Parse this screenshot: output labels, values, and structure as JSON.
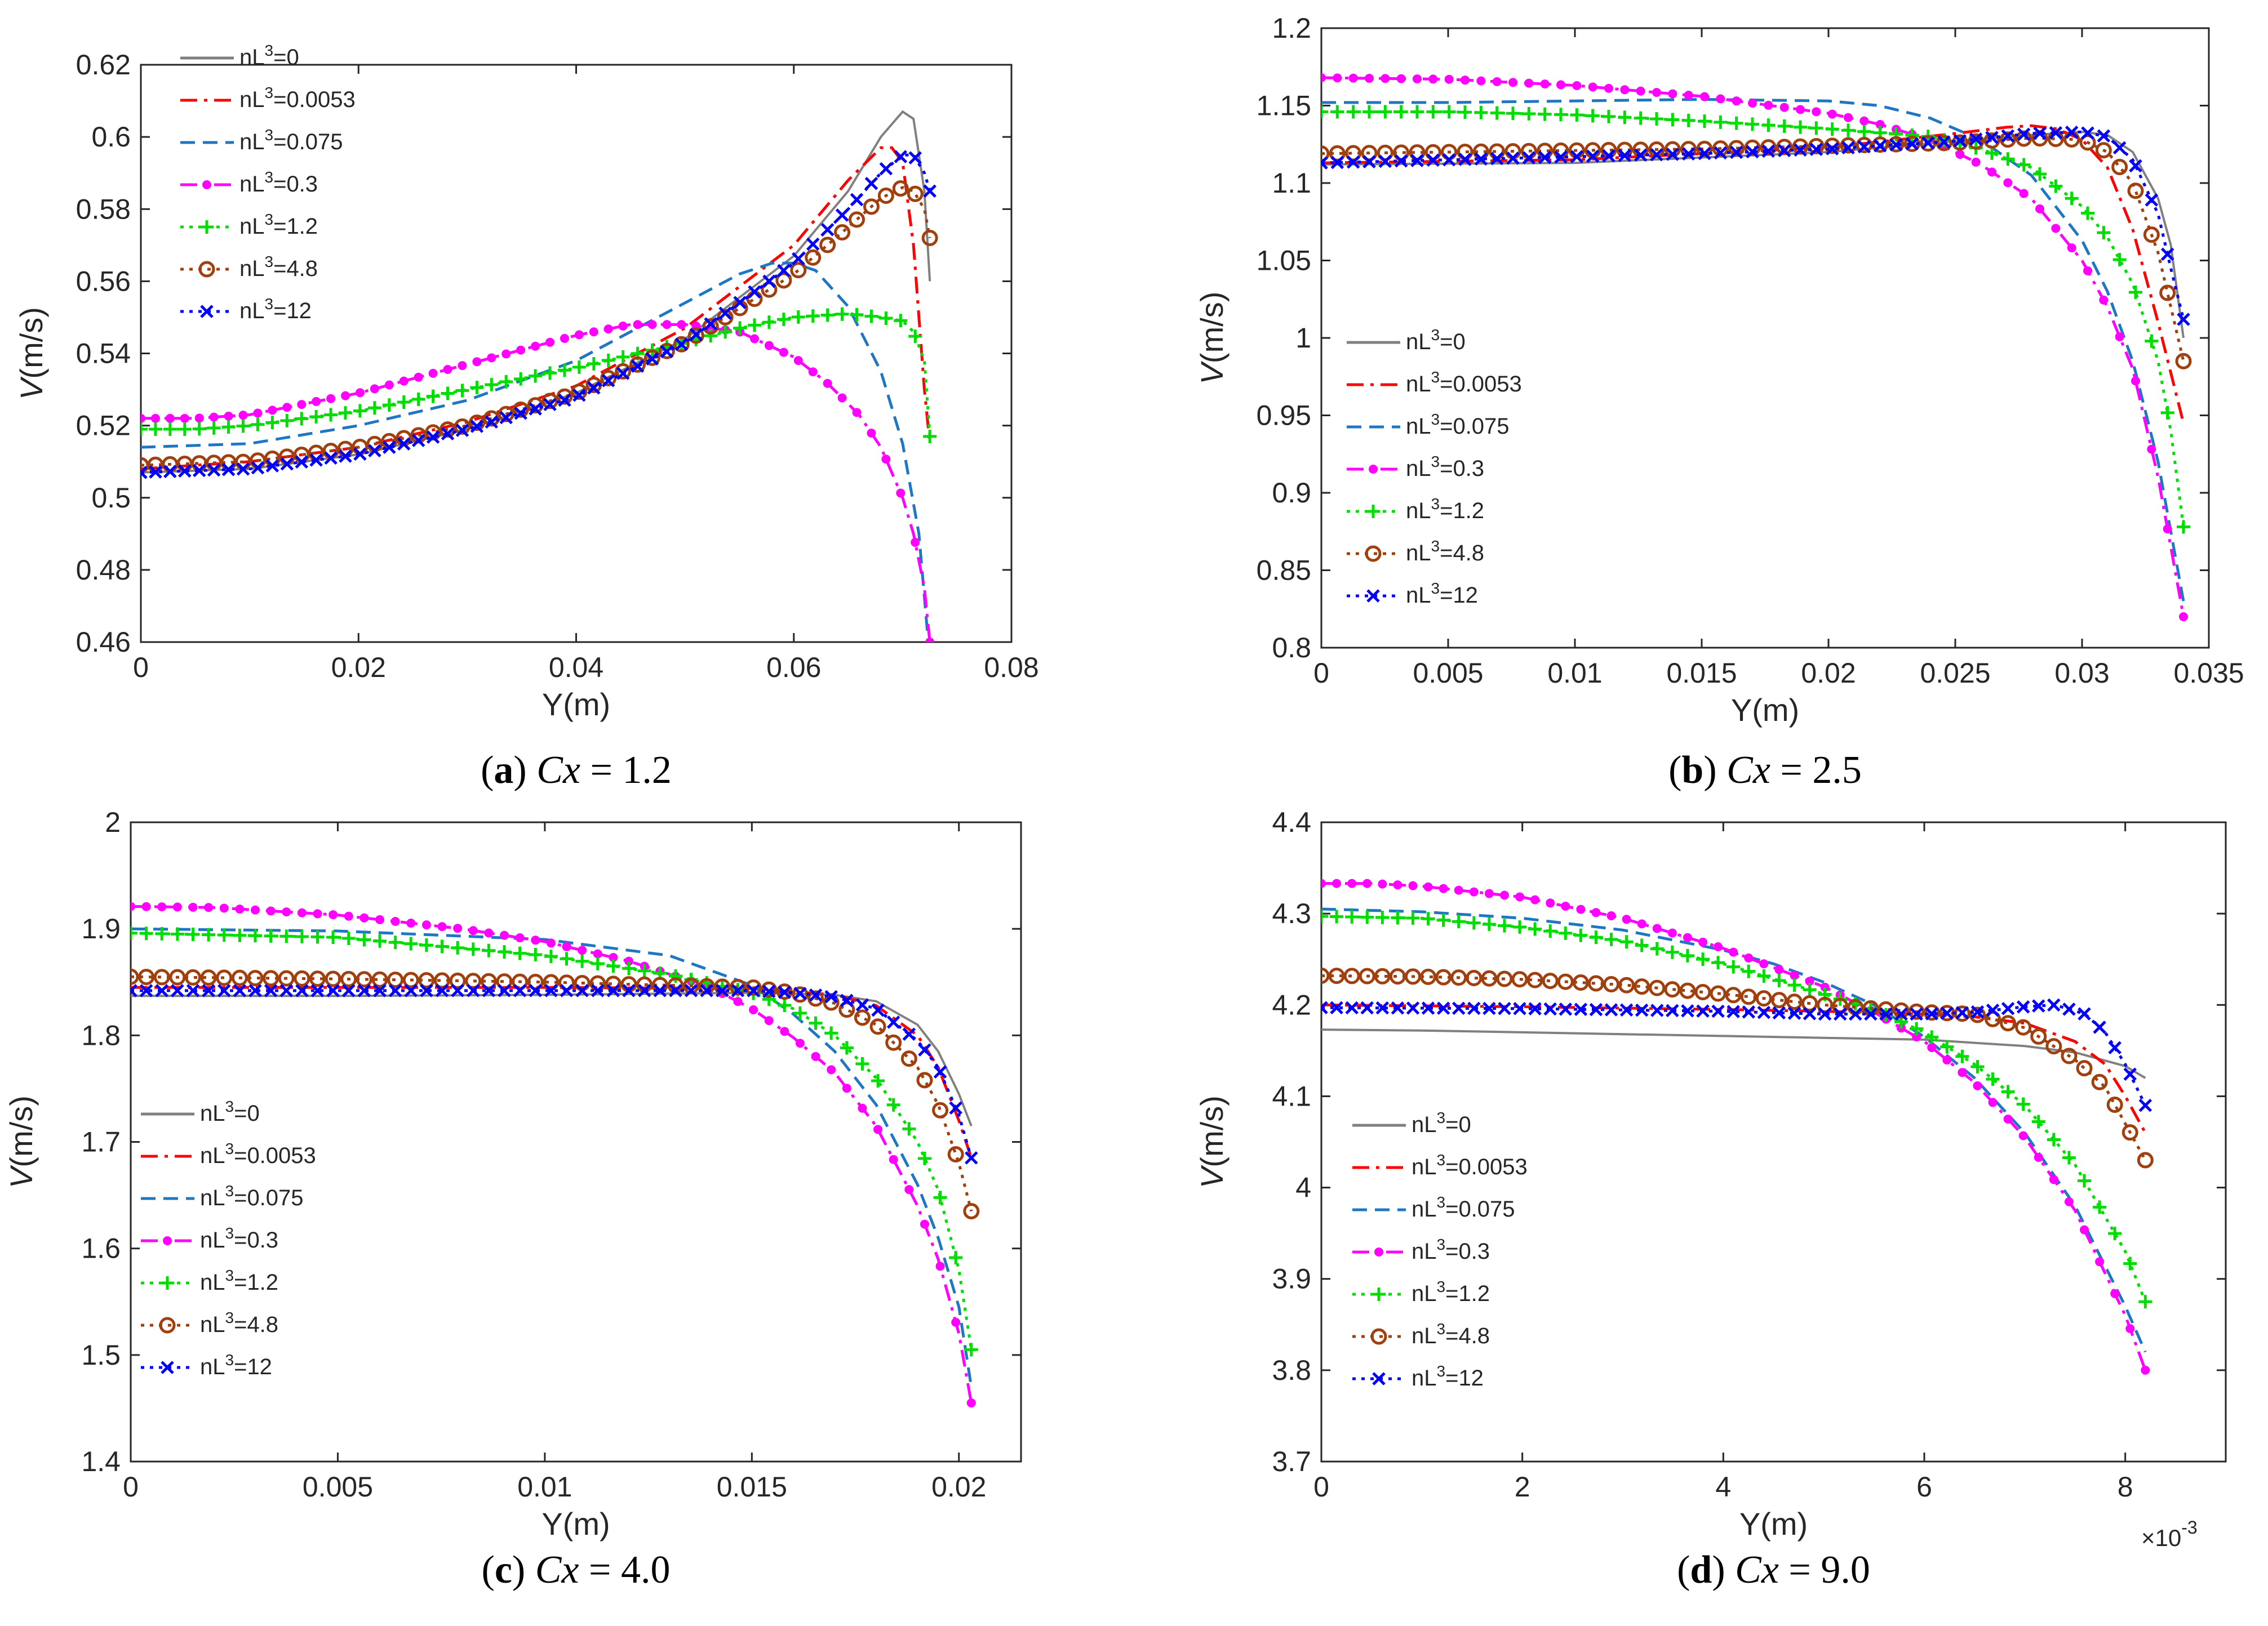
{
  "figure": {
    "legend_labels": [
      "nL³=0",
      "nL³=0.0053",
      "nL³=0.075",
      "nL³=0.3",
      "nL³=1.2",
      "nL³=4.8",
      "nL³=12"
    ],
    "series_style": [
      {
        "color": "#808080",
        "dash": "none",
        "marker": "none"
      },
      {
        "color": "#ff0000",
        "dash": "dashdot",
        "marker": "none"
      },
      {
        "color": "#1f77c4",
        "dash": "dash",
        "marker": "none"
      },
      {
        "color": "#ff00ff",
        "dash": "dashdot",
        "marker": "dot"
      },
      {
        "color": "#00dd00",
        "dash": "dot",
        "marker": "plus"
      },
      {
        "color": "#a0400e",
        "dash": "dot",
        "marker": "circle"
      },
      {
        "color": "#0000ff",
        "dash": "dot",
        "marker": "x"
      }
    ]
  },
  "chart_data": [
    {
      "type": "line",
      "panel": "a",
      "caption_letter": "(a)",
      "caption_var": "Cx",
      "caption_rest": " = 1.2",
      "xlabel": "Y(m)",
      "ylabel_italic": "V",
      "ylabel_rest": "(m/s)",
      "xlim": [
        0,
        0.08
      ],
      "ylim": [
        0.46,
        0.62
      ],
      "xticks": [
        "0",
        "0.02",
        "0.04",
        "0.06",
        "0.08"
      ],
      "yticks": [
        "0.46",
        "0.48",
        "0.5",
        "0.52",
        "0.54",
        "0.56",
        "0.58",
        "0.6",
        "0.62"
      ],
      "x_exponent": "",
      "legend_position": "top-left",
      "series": [
        {
          "name": "nL³=0",
          "x": [
            0,
            0.01,
            0.02,
            0.03,
            0.04,
            0.05,
            0.06,
            0.065,
            0.068,
            0.07,
            0.071,
            0.072,
            0.0725
          ],
          "y": [
            0.507,
            0.508,
            0.512,
            0.519,
            0.529,
            0.544,
            0.567,
            0.585,
            0.6,
            0.607,
            0.605,
            0.585,
            0.56
          ]
        },
        {
          "name": "nL³=0.0053",
          "x": [
            0,
            0.01,
            0.02,
            0.03,
            0.04,
            0.05,
            0.06,
            0.065,
            0.068,
            0.069,
            0.07,
            0.071,
            0.072,
            0.0725
          ],
          "y": [
            0.508,
            0.51,
            0.514,
            0.521,
            0.531,
            0.547,
            0.57,
            0.588,
            0.597,
            0.597,
            0.593,
            0.57,
            0.53,
            0.515
          ]
        },
        {
          "name": "nL³=0.075",
          "x": [
            0,
            0.01,
            0.02,
            0.03,
            0.04,
            0.05,
            0.055,
            0.058,
            0.06,
            0.062,
            0.065,
            0.068,
            0.07,
            0.0715,
            0.0725
          ],
          "y": [
            0.514,
            0.515,
            0.52,
            0.527,
            0.538,
            0.554,
            0.562,
            0.565,
            0.565,
            0.563,
            0.553,
            0.535,
            0.515,
            0.49,
            0.455
          ]
        },
        {
          "name": "nL³=0.3",
          "x": [
            0,
            0.005,
            0.01,
            0.02,
            0.03,
            0.04,
            0.045,
            0.05,
            0.055,
            0.06,
            0.063,
            0.066,
            0.068,
            0.07,
            0.071,
            0.072,
            0.0725
          ],
          "y": [
            0.522,
            0.522,
            0.523,
            0.529,
            0.537,
            0.545,
            0.548,
            0.548,
            0.546,
            0.539,
            0.532,
            0.523,
            0.514,
            0.5,
            0.49,
            0.475,
            0.46
          ]
        },
        {
          "name": "nL³=1.2",
          "x": [
            0,
            0.005,
            0.01,
            0.02,
            0.03,
            0.04,
            0.05,
            0.055,
            0.06,
            0.065,
            0.068,
            0.07,
            0.071,
            0.072,
            0.0725
          ],
          "y": [
            0.519,
            0.519,
            0.52,
            0.524,
            0.53,
            0.536,
            0.543,
            0.547,
            0.55,
            0.551,
            0.55,
            0.549,
            0.546,
            0.538,
            0.517
          ]
        },
        {
          "name": "nL³=4.8",
          "x": [
            0,
            0.01,
            0.02,
            0.03,
            0.04,
            0.05,
            0.06,
            0.065,
            0.068,
            0.07,
            0.071,
            0.072,
            0.0725
          ],
          "y": [
            0.509,
            0.51,
            0.514,
            0.52,
            0.529,
            0.543,
            0.562,
            0.575,
            0.583,
            0.586,
            0.585,
            0.58,
            0.572
          ]
        },
        {
          "name": "nL³=12",
          "x": [
            0,
            0.01,
            0.02,
            0.03,
            0.04,
            0.05,
            0.06,
            0.065,
            0.068,
            0.07,
            0.071,
            0.072,
            0.0725
          ],
          "y": [
            0.507,
            0.508,
            0.512,
            0.519,
            0.528,
            0.543,
            0.565,
            0.58,
            0.59,
            0.595,
            0.595,
            0.59,
            0.585
          ]
        }
      ]
    },
    {
      "type": "line",
      "panel": "b",
      "caption_letter": "(b)",
      "caption_var": "Cx",
      "caption_rest": " = 2.5",
      "xlabel": "Y(m)",
      "ylabel_italic": "V",
      "ylabel_rest": "(m/s)",
      "xlim": [
        0,
        0.035
      ],
      "ylim": [
        0.8,
        1.2
      ],
      "xticks": [
        "0",
        "0.005",
        "0.01",
        "0.015",
        "0.02",
        "0.025",
        "0.03",
        "0.035"
      ],
      "yticks": [
        "0.8",
        "0.85",
        "0.9",
        "0.95",
        "1",
        "1.05",
        "1.1",
        "1.15",
        "1.2"
      ],
      "x_exponent": "",
      "legend_position": "middle-left",
      "series": [
        {
          "name": "nL³=0",
          "x": [
            0,
            0.01,
            0.02,
            0.025,
            0.028,
            0.03,
            0.031,
            0.032,
            0.033,
            0.0335,
            0.034
          ],
          "y": [
            1.112,
            1.113,
            1.12,
            1.127,
            1.131,
            1.133,
            1.131,
            1.12,
            1.09,
            1.06,
            1.0
          ]
        },
        {
          "name": "nL³=0.0053",
          "x": [
            0,
            0.01,
            0.02,
            0.025,
            0.027,
            0.028,
            0.029,
            0.03,
            0.031,
            0.032,
            0.033,
            0.034
          ],
          "y": [
            1.113,
            1.115,
            1.123,
            1.132,
            1.136,
            1.137,
            1.135,
            1.128,
            1.11,
            1.07,
            1.01,
            0.945
          ]
        },
        {
          "name": "nL³=0.075",
          "x": [
            0,
            0.005,
            0.01,
            0.015,
            0.02,
            0.022,
            0.024,
            0.026,
            0.028,
            0.03,
            0.031,
            0.032,
            0.033,
            0.034
          ],
          "y": [
            1.152,
            1.152,
            1.153,
            1.154,
            1.153,
            1.15,
            1.142,
            1.128,
            1.105,
            1.063,
            1.03,
            0.985,
            0.92,
            0.83
          ]
        },
        {
          "name": "nL³=0.3",
          "x": [
            0,
            0.005,
            0.01,
            0.015,
            0.02,
            0.022,
            0.024,
            0.026,
            0.028,
            0.03,
            0.031,
            0.032,
            0.033,
            0.034
          ],
          "y": [
            1.168,
            1.167,
            1.163,
            1.156,
            1.145,
            1.138,
            1.128,
            1.112,
            1.09,
            1.05,
            1.02,
            0.98,
            0.91,
            0.82
          ]
        },
        {
          "name": "nL³=1.2",
          "x": [
            0,
            0.005,
            0.01,
            0.015,
            0.02,
            0.024,
            0.026,
            0.028,
            0.03,
            0.031,
            0.032,
            0.033,
            0.0335,
            0.034
          ],
          "y": [
            1.146,
            1.146,
            1.144,
            1.14,
            1.135,
            1.13,
            1.122,
            1.11,
            1.085,
            1.065,
            1.035,
            0.985,
            0.94,
            0.878
          ]
        },
        {
          "name": "nL³=4.8",
          "x": [
            0,
            0.005,
            0.01,
            0.015,
            0.02,
            0.025,
            0.028,
            0.03,
            0.031,
            0.032,
            0.033,
            0.0335,
            0.034
          ],
          "y": [
            1.119,
            1.12,
            1.121,
            1.122,
            1.124,
            1.126,
            1.129,
            1.128,
            1.12,
            1.1,
            1.055,
            1.02,
            0.985
          ]
        },
        {
          "name": "nL³=12",
          "x": [
            0,
            0.005,
            0.01,
            0.015,
            0.02,
            0.025,
            0.028,
            0.03,
            0.031,
            0.032,
            0.033,
            0.0335,
            0.034
          ],
          "y": [
            1.113,
            1.115,
            1.117,
            1.119,
            1.122,
            1.127,
            1.132,
            1.133,
            1.13,
            1.115,
            1.08,
            1.045,
            1.012
          ]
        }
      ]
    },
    {
      "type": "line",
      "panel": "c",
      "caption_letter": "(c)",
      "caption_var": "Cx",
      "caption_rest": " = 4.0",
      "xlabel": "Y(m)",
      "ylabel_italic": "V",
      "ylabel_rest": "(m/s)",
      "xlim": [
        0,
        0.0215
      ],
      "ylim": [
        1.4,
        2.0
      ],
      "xticks": [
        "0",
        "0.005",
        "0.01",
        "0.015",
        "0.02"
      ],
      "xtick_values": [
        0,
        0.005,
        0.01,
        0.015,
        0.02
      ],
      "yticks": [
        "1.4",
        "1.5",
        "1.6",
        "1.7",
        "1.8",
        "1.9",
        "2"
      ],
      "x_exponent": "",
      "legend_position": "bottom-left",
      "series": [
        {
          "name": "nL³=0",
          "x": [
            0,
            0.005,
            0.01,
            0.015,
            0.017,
            0.018,
            0.019,
            0.0195,
            0.02,
            0.0203
          ],
          "y": [
            1.837,
            1.837,
            1.838,
            1.84,
            1.838,
            1.832,
            1.81,
            1.785,
            1.745,
            1.715
          ]
        },
        {
          "name": "nL³=0.0053",
          "x": [
            0,
            0.005,
            0.01,
            0.015,
            0.017,
            0.018,
            0.019,
            0.0195,
            0.02,
            0.0203
          ],
          "y": [
            1.845,
            1.845,
            1.845,
            1.844,
            1.838,
            1.828,
            1.8,
            1.77,
            1.72,
            1.685
          ]
        },
        {
          "name": "nL³=0.075",
          "x": [
            0,
            0.005,
            0.01,
            0.013,
            0.015,
            0.016,
            0.017,
            0.018,
            0.019,
            0.0195,
            0.02,
            0.0203
          ],
          "y": [
            1.9,
            1.898,
            1.89,
            1.875,
            1.847,
            1.82,
            1.785,
            1.735,
            1.66,
            1.61,
            1.545,
            1.47
          ]
        },
        {
          "name": "nL³=0.3",
          "x": [
            0,
            0.002,
            0.005,
            0.008,
            0.01,
            0.012,
            0.014,
            0.015,
            0.016,
            0.017,
            0.018,
            0.019,
            0.0195,
            0.02,
            0.0203
          ],
          "y": [
            1.921,
            1.92,
            1.913,
            1.9,
            1.888,
            1.87,
            1.845,
            1.825,
            1.798,
            1.765,
            1.715,
            1.64,
            1.59,
            1.52,
            1.455
          ]
        },
        {
          "name": "nL³=1.2",
          "x": [
            0,
            0.005,
            0.01,
            0.013,
            0.015,
            0.016,
            0.017,
            0.018,
            0.019,
            0.0195,
            0.02,
            0.0203
          ],
          "y": [
            1.896,
            1.892,
            1.875,
            1.857,
            1.84,
            1.825,
            1.8,
            1.76,
            1.7,
            1.655,
            1.58,
            1.505
          ]
        },
        {
          "name": "nL³=4.8",
          "x": [
            0,
            0.005,
            0.01,
            0.015,
            0.016,
            0.017,
            0.018,
            0.019,
            0.0195,
            0.02,
            0.0203
          ],
          "y": [
            1.855,
            1.853,
            1.85,
            1.845,
            1.84,
            1.83,
            1.81,
            1.77,
            1.735,
            1.68,
            1.635
          ]
        },
        {
          "name": "nL³=12",
          "x": [
            0,
            0.005,
            0.01,
            0.015,
            0.016,
            0.017,
            0.018,
            0.019,
            0.0195,
            0.02,
            0.0203
          ],
          "y": [
            1.842,
            1.842,
            1.842,
            1.842,
            1.84,
            1.836,
            1.825,
            1.795,
            1.77,
            1.725,
            1.685
          ]
        }
      ]
    },
    {
      "type": "line",
      "panel": "d",
      "caption_letter": "(d)",
      "caption_var": "Cx",
      "caption_rest": " = 9.0",
      "xlabel": "Y(m)",
      "ylabel_italic": "V",
      "ylabel_rest": "(m/s)",
      "xlim": [
        0,
        9
      ],
      "ylim": [
        3.7,
        4.4
      ],
      "xticks": [
        "0",
        "2",
        "4",
        "6",
        "8"
      ],
      "xtick_values": [
        0,
        2,
        4,
        6,
        8
      ],
      "yticks": [
        "3.7",
        "3.8",
        "3.9",
        "4",
        "4.1",
        "4.2",
        "4.3",
        "4.4"
      ],
      "x_exponent": "×10",
      "x_exponent_power": "-3",
      "legend_position": "bottom-left",
      "series": [
        {
          "name": "nL³=0",
          "x": [
            0,
            1,
            2,
            3,
            4,
            5,
            6,
            7,
            7.5,
            8,
            8.2
          ],
          "y": [
            4.173,
            4.172,
            4.17,
            4.168,
            4.166,
            4.164,
            4.162,
            4.155,
            4.148,
            4.133,
            4.12
          ]
        },
        {
          "name": "nL³=0.0053",
          "x": [
            0,
            2,
            4,
            5,
            6,
            6.5,
            7,
            7.5,
            7.8,
            8,
            8.2
          ],
          "y": [
            4.2,
            4.198,
            4.195,
            4.193,
            4.19,
            4.187,
            4.18,
            4.16,
            4.135,
            4.1,
            4.06
          ]
        },
        {
          "name": "nL³=0.075",
          "x": [
            0,
            1,
            2,
            3,
            4,
            4.5,
            5,
            5.5,
            6,
            6.5,
            7,
            7.5,
            8,
            8.2
          ],
          "y": [
            4.305,
            4.302,
            4.295,
            4.282,
            4.26,
            4.245,
            4.225,
            4.2,
            4.165,
            4.12,
            4.06,
            3.98,
            3.87,
            3.82
          ]
        },
        {
          "name": "nL³=0.3",
          "x": [
            0,
            0.5,
            1,
            2,
            3,
            4,
            5,
            5.5,
            6,
            6.5,
            7,
            7.5,
            8,
            8.2
          ],
          "y": [
            4.333,
            4.333,
            4.33,
            4.318,
            4.295,
            4.262,
            4.22,
            4.192,
            4.16,
            4.115,
            4.055,
            3.975,
            3.86,
            3.8
          ]
        },
        {
          "name": "nL³=1.2",
          "x": [
            0,
            1,
            2,
            3,
            4,
            5,
            5.5,
            6,
            6.5,
            7,
            7.5,
            8,
            8.2
          ],
          "y": [
            4.297,
            4.295,
            4.285,
            4.27,
            4.245,
            4.212,
            4.195,
            4.17,
            4.135,
            4.09,
            4.025,
            3.93,
            3.875
          ]
        },
        {
          "name": "nL³=4.8",
          "x": [
            0,
            1,
            2,
            3,
            4,
            5,
            6,
            6.5,
            7,
            7.5,
            7.8,
            8,
            8.2
          ],
          "y": [
            4.232,
            4.231,
            4.228,
            4.222,
            4.212,
            4.2,
            4.192,
            4.19,
            4.175,
            4.14,
            4.11,
            4.07,
            4.03
          ]
        },
        {
          "name": "nL³=12",
          "x": [
            0,
            2,
            4,
            5,
            6,
            6.5,
            7,
            7.3,
            7.6,
            7.8,
            8,
            8.2
          ],
          "y": [
            4.197,
            4.196,
            4.193,
            4.19,
            4.19,
            4.192,
            4.198,
            4.2,
            4.19,
            4.17,
            4.135,
            4.09
          ]
        }
      ]
    }
  ]
}
